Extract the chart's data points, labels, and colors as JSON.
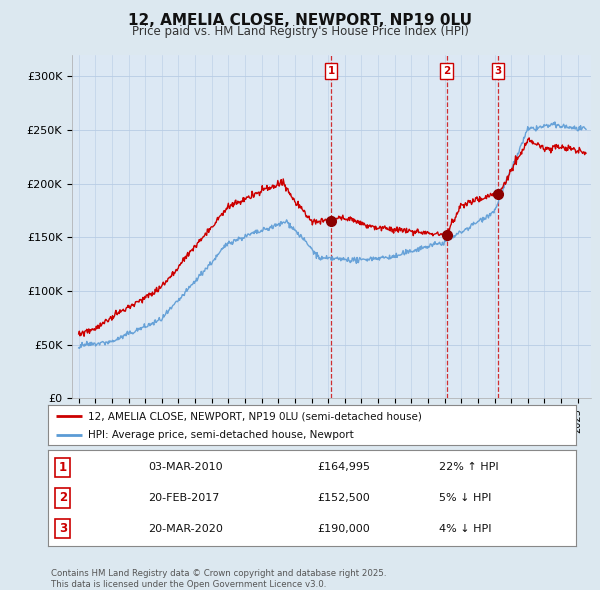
{
  "title": "12, AMELIA CLOSE, NEWPORT, NP19 0LU",
  "subtitle": "Price paid vs. HM Land Registry's House Price Index (HPI)",
  "ylim": [
    0,
    320000
  ],
  "yticks": [
    0,
    50000,
    100000,
    150000,
    200000,
    250000,
    300000
  ],
  "ytick_labels": [
    "£0",
    "£50K",
    "£100K",
    "£150K",
    "£200K",
    "£250K",
    "£300K"
  ],
  "bg_color": "#dce8f0",
  "plot_bg_color": "#dce8f4",
  "line_color_hpi": "#5b9bd5",
  "line_color_price": "#cc0000",
  "legend_label_price": "12, AMELIA CLOSE, NEWPORT, NP19 0LU (semi-detached house)",
  "legend_label_hpi": "HPI: Average price, semi-detached house, Newport",
  "transactions": [
    {
      "date_x": 2010.17,
      "price": 164995,
      "label": "1"
    },
    {
      "date_x": 2017.12,
      "price": 152500,
      "label": "2"
    },
    {
      "date_x": 2020.22,
      "price": 190000,
      "label": "3"
    }
  ],
  "table_rows": [
    {
      "num": "1",
      "date": "03-MAR-2010",
      "price": "£164,995",
      "pct": "22% ↑ HPI"
    },
    {
      "num": "2",
      "date": "20-FEB-2017",
      "price": "£152,500",
      "pct": "5% ↓ HPI"
    },
    {
      "num": "3",
      "date": "20-MAR-2020",
      "price": "£190,000",
      "pct": "4% ↓ HPI"
    }
  ],
  "footnote": "Contains HM Land Registry data © Crown copyright and database right 2025.\nThis data is licensed under the Open Government Licence v3.0.",
  "xlim_start": 1994.6,
  "xlim_end": 2025.8
}
